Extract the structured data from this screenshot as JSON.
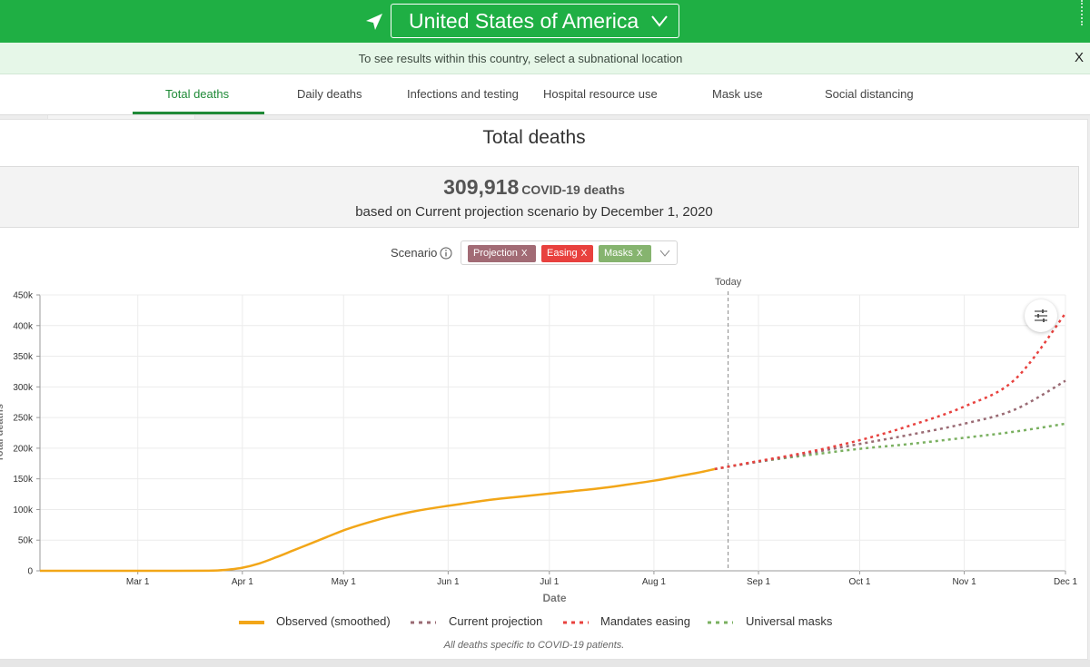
{
  "header": {
    "location": "United States of America",
    "nav_icon": "location-arrow-icon",
    "dropdown_icon": "chevron-down-icon"
  },
  "banner": {
    "text": "To see results within this country, select a subnational location",
    "close_label": "X"
  },
  "tabs": [
    {
      "label": "Total deaths",
      "active": true
    },
    {
      "label": "Daily deaths",
      "active": false
    },
    {
      "label": "Infections and testing",
      "active": false
    },
    {
      "label": "Hospital resource use",
      "active": false
    },
    {
      "label": "Mask use",
      "active": false
    },
    {
      "label": "Social distancing",
      "active": false
    }
  ],
  "summary": {
    "number": "309,918",
    "unit": "COVID-19 deaths",
    "subtitle": "based on Current projection scenario by December 1, 2020"
  },
  "scenario": {
    "label": "Scenario",
    "chips": [
      {
        "label": "Projection",
        "remove": "X",
        "color": "#a26b75"
      },
      {
        "label": "Easing",
        "remove": "X",
        "color": "#e8413e"
      },
      {
        "label": "Masks",
        "remove": "X",
        "color": "#86b46f"
      }
    ]
  },
  "colors": {
    "brand_green": "#1faf44",
    "tab_active": "#1f8a37",
    "observed": "#f2a618",
    "current": "#9a6b74",
    "easing": "#e8413e",
    "masks": "#7ab060"
  },
  "chart_data": {
    "type": "line",
    "title": "Total deaths",
    "xlabel": "Date",
    "ylabel": "Total deaths",
    "x_ticks": [
      "Mar 1",
      "Apr 1",
      "May 1",
      "Jun 1",
      "Jul 1",
      "Aug 1",
      "Sep 1",
      "Oct 1",
      "Nov 1",
      "Dec 1"
    ],
    "x_tick_days": [
      29,
      60,
      90,
      121,
      151,
      182,
      213,
      243,
      274,
      304
    ],
    "x_domain_days": [
      0,
      304
    ],
    "y_ticks": [
      "0",
      "50k",
      "100k",
      "150k",
      "200k",
      "250k",
      "300k",
      "350k",
      "400k",
      "450k"
    ],
    "ylim": [
      0,
      450000
    ],
    "today_label": "Today",
    "today_day": 204,
    "series": [
      {
        "name": "Observed (smoothed)",
        "style": "solid",
        "points": [
          [
            0,
            0
          ],
          [
            20,
            0
          ],
          [
            40,
            0
          ],
          [
            50,
            200
          ],
          [
            55,
            1500
          ],
          [
            60,
            5000
          ],
          [
            65,
            12000
          ],
          [
            70,
            22000
          ],
          [
            75,
            33000
          ],
          [
            80,
            44000
          ],
          [
            85,
            55000
          ],
          [
            90,
            66000
          ],
          [
            95,
            75000
          ],
          [
            100,
            83000
          ],
          [
            105,
            90000
          ],
          [
            110,
            96000
          ],
          [
            115,
            101000
          ],
          [
            121,
            106000
          ],
          [
            126,
            110000
          ],
          [
            131,
            114000
          ],
          [
            137,
            118000
          ],
          [
            144,
            122000
          ],
          [
            151,
            126000
          ],
          [
            158,
            130000
          ],
          [
            165,
            134000
          ],
          [
            172,
            139000
          ],
          [
            182,
            147000
          ],
          [
            190,
            155000
          ],
          [
            196,
            161000
          ],
          [
            200,
            166000
          ]
        ]
      },
      {
        "name": "Current projection",
        "style": "dotted",
        "points": [
          [
            200,
            166000
          ],
          [
            213,
            178000
          ],
          [
            228,
            192000
          ],
          [
            243,
            207000
          ],
          [
            258,
            222000
          ],
          [
            274,
            240000
          ],
          [
            289,
            263000
          ],
          [
            304,
            310000
          ]
        ]
      },
      {
        "name": "Mandates easing",
        "style": "dotted",
        "points": [
          [
            200,
            166000
          ],
          [
            213,
            179000
          ],
          [
            228,
            194000
          ],
          [
            243,
            213000
          ],
          [
            258,
            237000
          ],
          [
            274,
            268000
          ],
          [
            289,
            312000
          ],
          [
            304,
            420000
          ]
        ]
      },
      {
        "name": "Universal masks",
        "style": "dotted",
        "points": [
          [
            200,
            166000
          ],
          [
            213,
            178000
          ],
          [
            228,
            189000
          ],
          [
            243,
            199000
          ],
          [
            258,
            207000
          ],
          [
            274,
            217000
          ],
          [
            289,
            227000
          ],
          [
            304,
            240000
          ]
        ]
      }
    ],
    "footnote": "All deaths specific to COVID-19 patients."
  }
}
